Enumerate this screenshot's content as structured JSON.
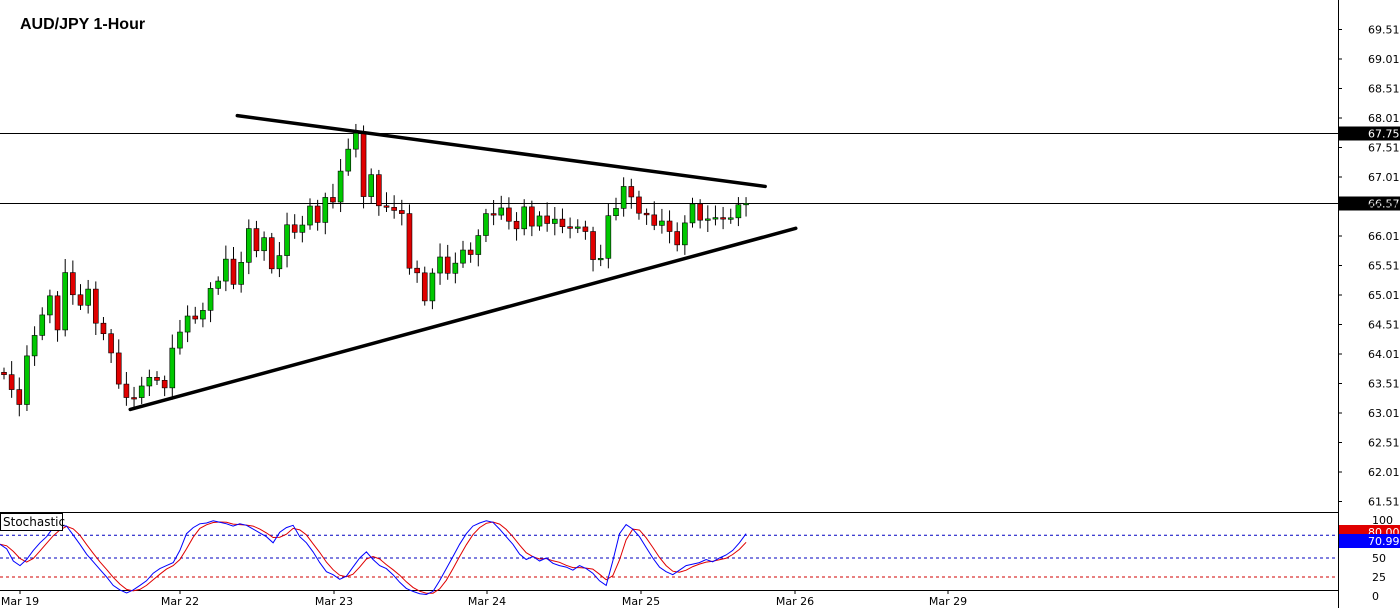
{
  "chart_data": [
    {
      "type": "candlestick",
      "title": "AUD/JPY 1-Hour",
      "y_ticks": [
        61.51,
        62.01,
        62.51,
        63.01,
        63.51,
        64.01,
        64.51,
        65.01,
        65.51,
        66.01,
        66.51,
        67.01,
        67.51,
        68.01,
        68.51,
        69.01,
        69.51
      ],
      "ylim": [
        61.2,
        69.9
      ],
      "x_labels": [
        "Mar 19",
        "Mar 22",
        "Mar 23",
        "Mar 24",
        "Mar 25",
        "Mar 26",
        "Mar 29"
      ],
      "up_color": "#00c800",
      "down_color": "#e00000",
      "horizontal_levels": [
        {
          "price": 67.75,
          "label": "67.75"
        },
        {
          "price": 66.57,
          "label": "66.57"
        }
      ],
      "trendlines": [
        {
          "name": "upper",
          "from": [
            30.5,
            68.05
          ],
          "to": [
            99.5,
            66.85
          ]
        },
        {
          "name": "lower",
          "from": [
            16.5,
            63.07
          ],
          "to": [
            103.5,
            66.14
          ]
        }
      ],
      "close_path": [
        [
          0,
          63.75
        ],
        [
          2,
          63.1
        ],
        [
          3,
          64.05
        ],
        [
          5,
          64.6
        ],
        [
          6,
          65.05
        ],
        [
          7,
          64.4
        ],
        [
          8,
          65.3
        ],
        [
          9,
          65.05
        ],
        [
          10,
          64.8
        ],
        [
          11,
          65.2
        ],
        [
          12,
          64.55
        ],
        [
          13,
          64.3
        ],
        [
          14,
          64.1
        ],
        [
          15,
          63.5
        ],
        [
          16,
          63.2
        ],
        [
          18,
          63.45
        ],
        [
          20,
          63.6
        ],
        [
          21,
          63.4
        ],
        [
          22,
          64.2
        ],
        [
          24,
          64.6
        ],
        [
          26,
          64.75
        ],
        [
          27,
          65.05
        ],
        [
          28,
          65.3
        ],
        [
          29,
          65.6
        ],
        [
          30,
          65.1
        ],
        [
          31,
          65.6
        ],
        [
          32,
          66.1
        ],
        [
          33,
          65.85
        ],
        [
          34,
          66.0
        ],
        [
          35,
          65.4
        ],
        [
          36,
          65.75
        ],
        [
          37,
          66.2
        ],
        [
          38,
          66.0
        ],
        [
          39,
          66.25
        ],
        [
          40,
          66.5
        ],
        [
          41,
          66.15
        ],
        [
          42,
          66.7
        ],
        [
          43,
          66.55
        ],
        [
          44,
          67.2
        ],
        [
          45,
          67.5
        ],
        [
          46,
          67.7
        ],
        [
          47,
          66.75
        ],
        [
          48,
          67.05
        ],
        [
          49,
          66.45
        ],
        [
          50,
          66.55
        ],
        [
          52,
          66.3
        ],
        [
          53,
          65.5
        ],
        [
          54,
          65.35
        ],
        [
          55,
          65.0
        ],
        [
          56,
          65.4
        ],
        [
          57,
          65.6
        ],
        [
          58,
          65.45
        ],
        [
          59,
          65.55
        ],
        [
          60,
          65.7
        ],
        [
          61,
          65.75
        ],
        [
          62,
          66.0
        ],
        [
          63,
          66.3
        ],
        [
          64,
          66.4
        ],
        [
          65,
          66.45
        ],
        [
          66,
          66.35
        ],
        [
          67,
          66.15
        ],
        [
          68,
          66.45
        ],
        [
          69,
          66.25
        ],
        [
          70,
          66.35
        ],
        [
          71,
          66.15
        ],
        [
          72,
          66.35
        ],
        [
          73,
          66.15
        ],
        [
          74,
          66.05
        ],
        [
          75,
          66.2
        ],
        [
          76,
          66.05
        ],
        [
          77,
          65.7
        ],
        [
          78,
          65.65
        ],
        [
          79,
          66.3
        ],
        [
          80,
          66.55
        ],
        [
          81,
          66.85
        ],
        [
          82,
          66.6
        ],
        [
          83,
          66.45
        ],
        [
          84,
          66.35
        ],
        [
          85,
          66.1
        ],
        [
          86,
          66.3
        ],
        [
          87,
          66.05
        ],
        [
          88,
          65.95
        ],
        [
          89,
          66.25
        ],
        [
          90,
          66.5
        ],
        [
          91,
          66.35
        ],
        [
          92,
          66.3
        ],
        [
          93,
          66.25
        ],
        [
          94,
          66.35
        ],
        [
          95,
          66.3
        ],
        [
          96,
          66.45
        ],
        [
          97,
          66.6
        ]
      ],
      "indicator": {
        "name": "Stochastic",
        "y_ticks": [
          0,
          25,
          50,
          75,
          100
        ],
        "levels": [
          25,
          50,
          80
        ],
        "value_labels": [
          "80.00",
          "70.99"
        ],
        "k_values": [
          68,
          62,
          46,
          40,
          48,
          60,
          70,
          78,
          90,
          93,
          92,
          80,
          68,
          55,
          45,
          35,
          25,
          14,
          8,
          4,
          8,
          14,
          20,
          30,
          36,
          40,
          44,
          60,
          82,
          90,
          95,
          96,
          99,
          97,
          95,
          92,
          95,
          93,
          88,
          83,
          78,
          70,
          84,
          90,
          93,
          78,
          70,
          58,
          44,
          32,
          28,
          22,
          26,
          38,
          50,
          58,
          48,
          40,
          36,
          28,
          18,
          10,
          6,
          3,
          2,
          6,
          20,
          36,
          52,
          68,
          82,
          92,
          96,
          99,
          97,
          88,
          78,
          68,
          55,
          48,
          52,
          46,
          50,
          43,
          40,
          38,
          34,
          40,
          36,
          30,
          20,
          14,
          46,
          82,
          94,
          88,
          78,
          64,
          50,
          38,
          32,
          28,
          34,
          40,
          42,
          44,
          48,
          45,
          50,
          54,
          60,
          70,
          82
        ]
      }
    }
  ]
}
